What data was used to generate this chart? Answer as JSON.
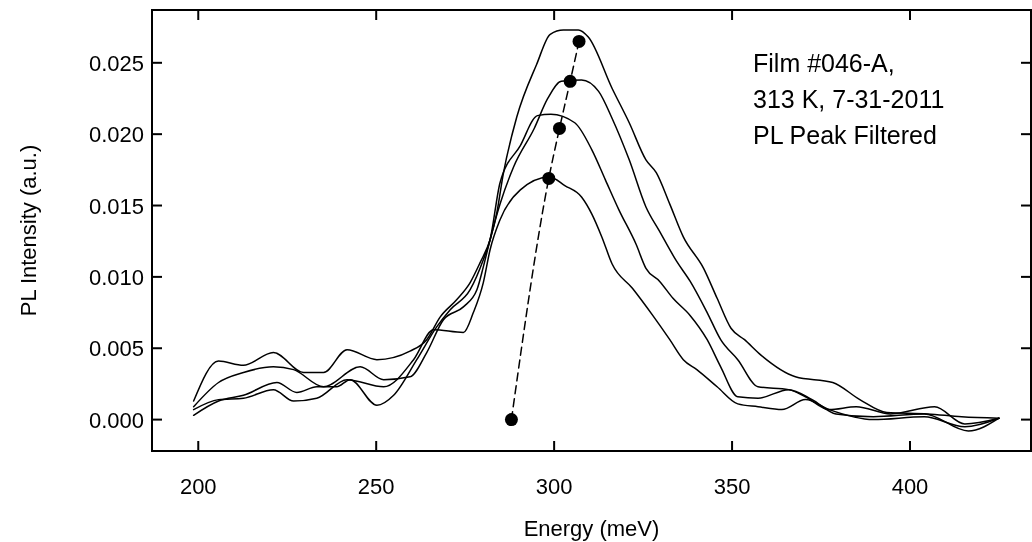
{
  "chart_data": {
    "type": "line",
    "xlabel": "Energy (meV)",
    "ylabel": "PL Intensity (a.u.)",
    "annotations": [
      "Film #046-A,\n313 K, 7-31-2011\nPL Peak Filtered"
    ],
    "xlim": [
      187,
      434
    ],
    "ylim": [
      -0.0022,
      0.0287
    ],
    "xticks": [
      200,
      250,
      300,
      350,
      400
    ],
    "yticks": [
      {
        "value": 0,
        "label": "0.000"
      },
      {
        "value": 0.005,
        "label": "0.005"
      },
      {
        "value": 0.01,
        "label": "0.010"
      },
      {
        "value": 0.015,
        "label": "0.015"
      },
      {
        "value": 0.02,
        "label": "0.020"
      },
      {
        "value": 0.025,
        "label": "0.025"
      }
    ],
    "grid": false,
    "marker": "none",
    "line_style": "solid",
    "series": [
      {
        "color": "#000000",
        "x": [
          198.7,
          205.7,
          212.7,
          221.1,
          229.6,
          235.2,
          241.8,
          250.2,
          259.5,
          264.2,
          268.0,
          272.6,
          276.4,
          279.2,
          282.0,
          283.9,
          285.7,
          289.5,
          295.1,
          298.9,
          302.6,
          306.8,
          309.6,
          316.3,
          321.1,
          325.8,
          328.7,
          332.5,
          336.3,
          342.0,
          345.8,
          349.7,
          353.5,
          358.2,
          367.8,
          378.3,
          385.9,
          393.5,
          405.0,
          414.5,
          425.0
        ],
        "values": [
          0.0013,
          0.0041,
          0.0038,
          0.0047,
          0.0033,
          0.0033,
          0.0049,
          0.0042,
          0.0048,
          0.0056,
          0.0072,
          0.0084,
          0.0096,
          0.011,
          0.0126,
          0.0145,
          0.0172,
          0.0212,
          0.0249,
          0.027,
          0.0273,
          0.0273,
          0.0268,
          0.0232,
          0.0208,
          0.0182,
          0.0173,
          0.0151,
          0.0128,
          0.0106,
          0.0085,
          0.0064,
          0.0056,
          0.0045,
          0.003,
          0.0026,
          0.0014,
          0.0005,
          0.0004,
          0.0002,
          0.0001
        ]
      },
      {
        "color": "#000000",
        "x": [
          198.7,
          205.7,
          212.7,
          221.1,
          226.8,
          235.2,
          245.5,
          252.1,
          259.5,
          264.2,
          268.9,
          274.5,
          278.3,
          280.1,
          282.0,
          284.8,
          288.6,
          294.4,
          298.2,
          302.0,
          307.7,
          312.5,
          316.3,
          321.1,
          325.8,
          329.6,
          334.4,
          338.2,
          343.0,
          346.8,
          351.6,
          357.3,
          365.9,
          370.6,
          377.3,
          384.9,
          394.5,
          406.9,
          415.4,
          425.0
        ],
        "values": [
          0.0009,
          0.0026,
          0.0033,
          0.0037,
          0.0035,
          0.0023,
          0.0037,
          0.0028,
          0.003,
          0.0047,
          0.007,
          0.0079,
          0.0091,
          0.0107,
          0.0126,
          0.0151,
          0.0177,
          0.0204,
          0.0225,
          0.0237,
          0.0238,
          0.023,
          0.0211,
          0.0182,
          0.0149,
          0.0132,
          0.0111,
          0.0097,
          0.0075,
          0.0056,
          0.0042,
          0.0023,
          0.0021,
          0.0016,
          0.0007,
          0.0009,
          0.0004,
          0.0009,
          -0.0003,
          0.0001
        ]
      },
      {
        "color": "#000000",
        "x": [
          198.7,
          205.7,
          212.7,
          222.1,
          227.7,
          233.3,
          238.9,
          242.7,
          250.2,
          254.9,
          261.4,
          267.0,
          270.8,
          276.4,
          280.1,
          282.0,
          284.8,
          290.5,
          295.3,
          299.1,
          305.8,
          310.6,
          314.4,
          318.2,
          323.0,
          325.8,
          329.6,
          333.4,
          338.2,
          343.0,
          346.8,
          351.6,
          357.3,
          365.9,
          372.5,
          379.2,
          389.7,
          404.0,
          416.4,
          425.0
        ],
        "values": [
          0.0003,
          0.0013,
          0.0017,
          0.0026,
          0.0019,
          0.0023,
          0.0023,
          0.0028,
          0.001,
          0.0017,
          0.0042,
          0.0065,
          0.0077,
          0.0091,
          0.0112,
          0.0126,
          0.0166,
          0.0192,
          0.0213,
          0.0214,
          0.0208,
          0.0189,
          0.0168,
          0.0147,
          0.0123,
          0.0106,
          0.0097,
          0.0085,
          0.0073,
          0.0056,
          0.0037,
          0.0016,
          0.0015,
          0.0021,
          0.0014,
          0.0004,
          0.0002,
          0.0004,
          -0.0008,
          0.0001
        ]
      },
      {
        "color": "#000000",
        "x": [
          198.7,
          205.7,
          212.7,
          221.1,
          226.8,
          233.3,
          241.8,
          252.1,
          260.5,
          266.1,
          274.5,
          277.3,
          280.1,
          282.0,
          284.8,
          290.5,
          298.7,
          303.0,
          307.7,
          310.6,
          313.4,
          316.3,
          322.0,
          327.7,
          332.5,
          336.3,
          340.1,
          345.8,
          351.6,
          357.3,
          364.0,
          370.6,
          377.3,
          389.7,
          404.0,
          415.4,
          425.0
        ],
        "values": [
          0.0007,
          0.0014,
          0.0015,
          0.0021,
          0.0013,
          0.0015,
          0.0028,
          0.0023,
          0.0042,
          0.0063,
          0.0061,
          0.0075,
          0.0096,
          0.0119,
          0.014,
          0.0161,
          0.017,
          0.0164,
          0.0156,
          0.0144,
          0.0128,
          0.0109,
          0.0092,
          0.0073,
          0.0056,
          0.0042,
          0.0035,
          0.0023,
          0.0011,
          0.0009,
          0.0007,
          0.0014,
          0.0007,
          0.0,
          0.0002,
          -0.0005,
          0.0001
        ]
      },
      {
        "color": "#000000",
        "marker": "circle",
        "line_style": "dashed",
        "x": [
          288,
          298.5,
          301.5,
          304.5,
          307
        ],
        "values": [
          0,
          0.0169,
          0.0204,
          0.0237,
          0.0265
        ]
      }
    ]
  }
}
